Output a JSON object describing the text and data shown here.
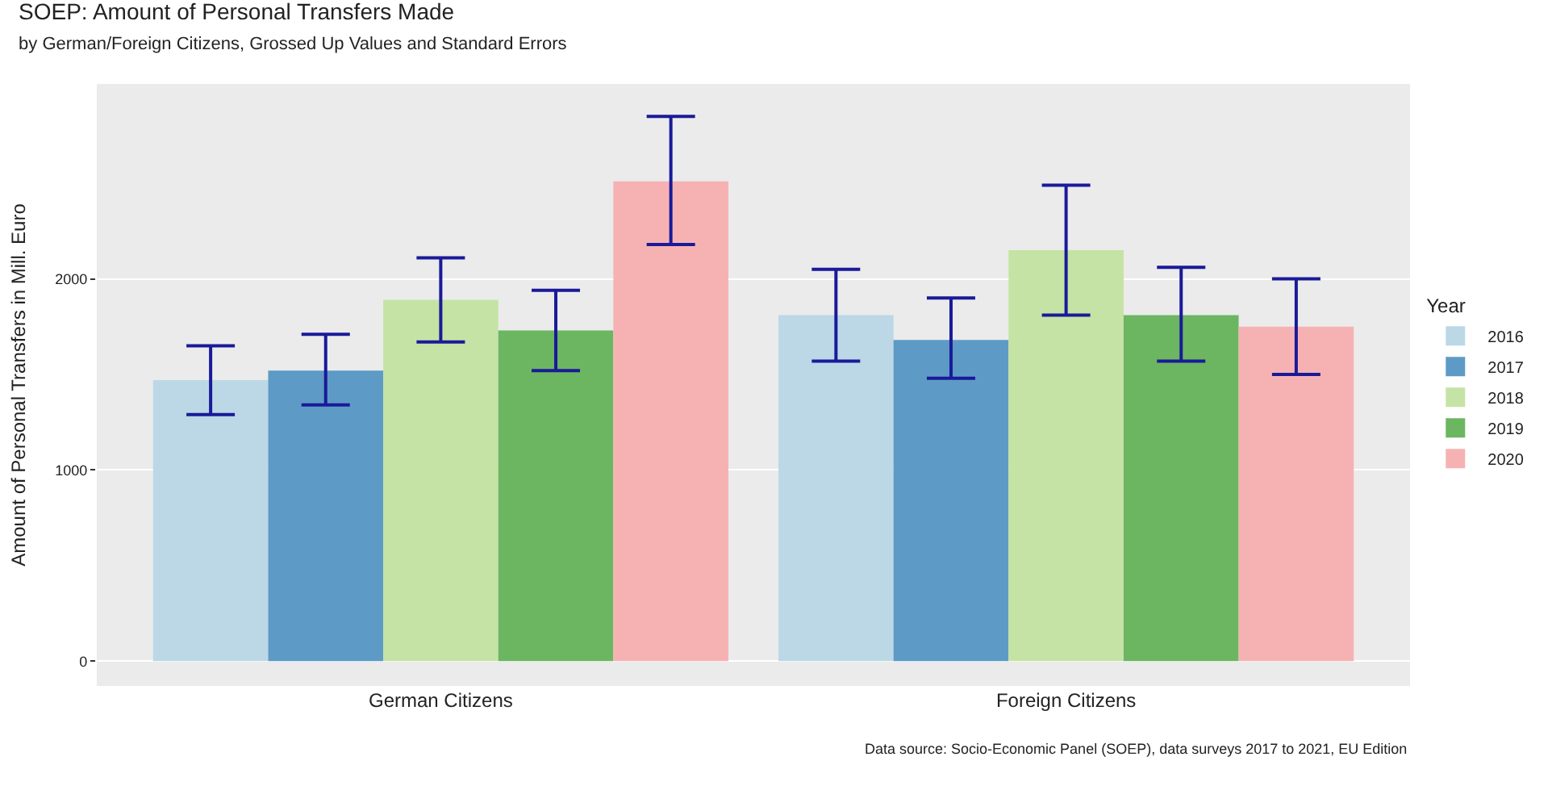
{
  "chart_data": {
    "type": "bar",
    "title": "SOEP: Amount of Personal Transfers Made",
    "subtitle": "by German/Foreign Citizens, Grossed Up Values and Standard Errors",
    "ylabel": "Amount of Personal Transfers in Mill. Euro",
    "legend_title": "Year",
    "categories": [
      "German Citizens",
      "Foreign Citizens"
    ],
    "series": [
      {
        "name": "2016",
        "color": "#bcd8e6",
        "values": [
          1470,
          1810
        ],
        "errors": [
          [
            1290,
            1650
          ],
          [
            1570,
            2050
          ]
        ]
      },
      {
        "name": "2017",
        "color": "#5d9bc6",
        "values": [
          1520,
          1680
        ],
        "errors": [
          [
            1340,
            1710
          ],
          [
            1480,
            1900
          ]
        ]
      },
      {
        "name": "2018",
        "color": "#c5e3a5",
        "values": [
          1890,
          2150
        ],
        "errors": [
          [
            1670,
            2110
          ],
          [
            1810,
            2490
          ]
        ]
      },
      {
        "name": "2019",
        "color": "#6cb662",
        "values": [
          1730,
          1810
        ],
        "errors": [
          [
            1520,
            1940
          ],
          [
            1570,
            2060
          ]
        ]
      },
      {
        "name": "2020",
        "color": "#f6b2b3",
        "values": [
          2510,
          1750
        ],
        "errors": [
          [
            2180,
            2850
          ],
          [
            1500,
            2000
          ]
        ]
      }
    ],
    "ylim": [
      -130,
      3020
    ],
    "yticks": [
      0,
      1000,
      2000
    ],
    "grid": "y",
    "legend": "right",
    "annotations": [
      "Data source: Socio-Economic Panel (SOEP), data surveys 2017 to 2021, EU Edition"
    ]
  }
}
